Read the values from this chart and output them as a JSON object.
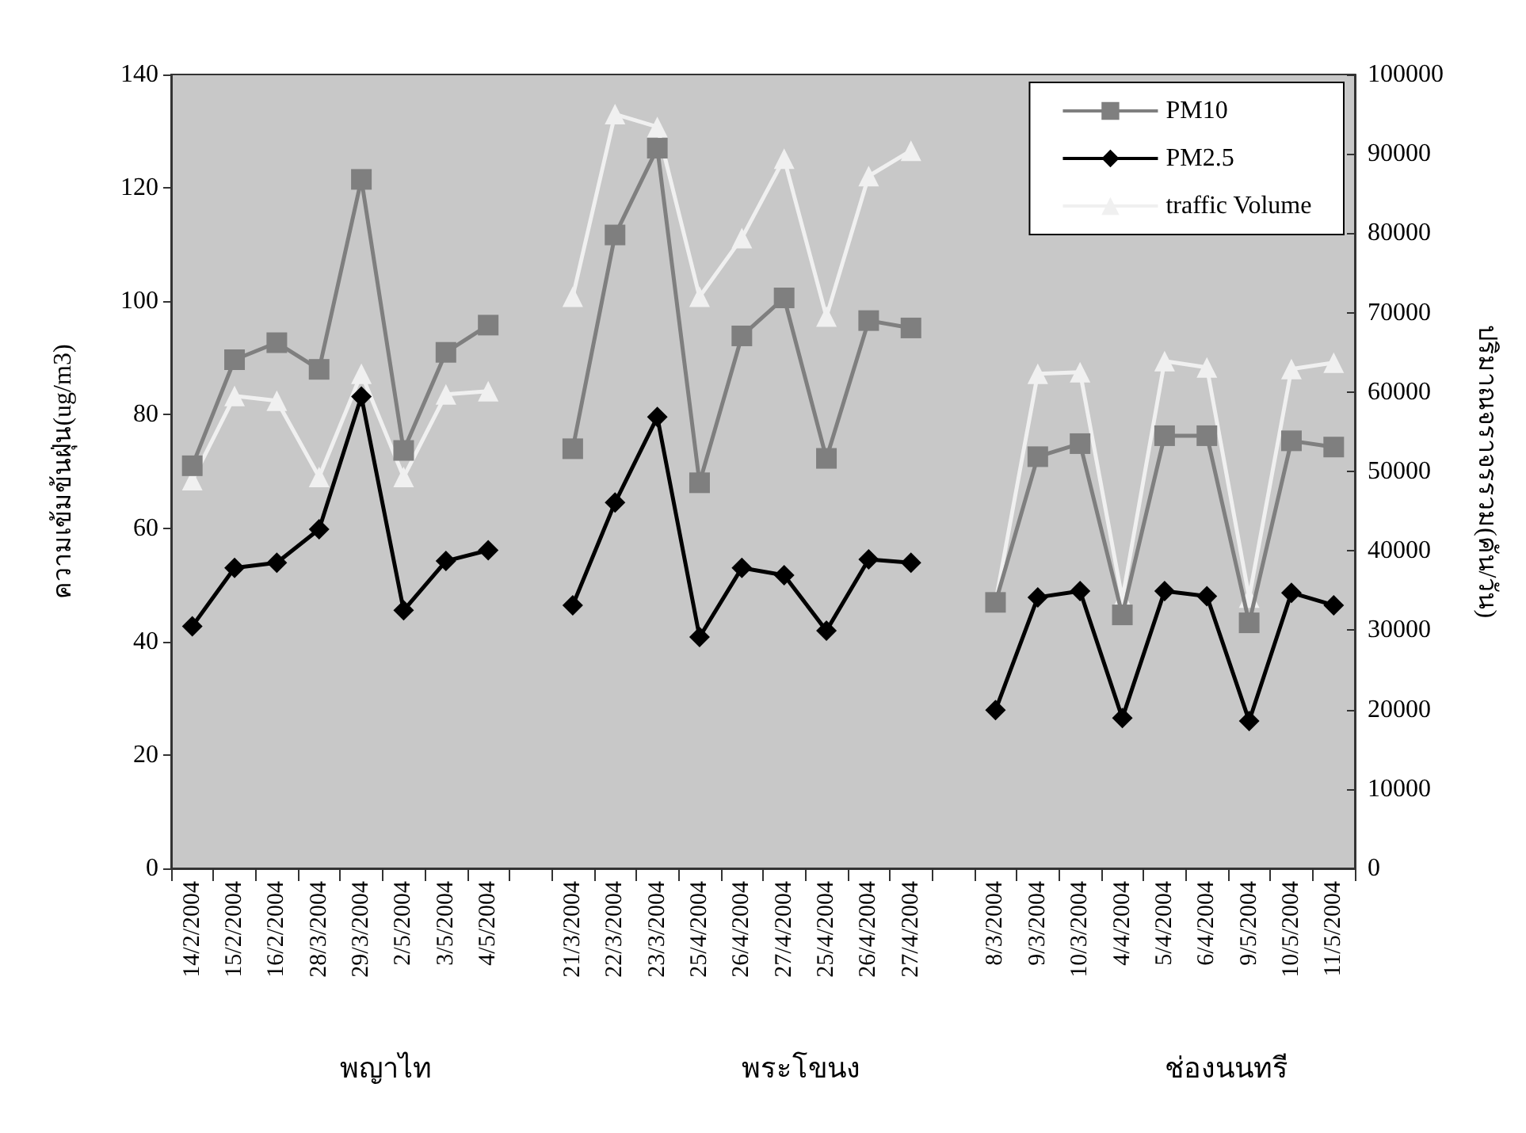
{
  "chart_data": {
    "type": "line",
    "categories": [
      "14/2/2004",
      "15/2/2004",
      "16/2/2004",
      "28/3/2004",
      "29/3/2004",
      "2/5/2004",
      "3/5/2004",
      "4/5/2004",
      null,
      "21/3/2004",
      "22/3/2004",
      "23/3/2004",
      "25/4/2004",
      "26/4/2004",
      "27/4/2004",
      "25/4/2004",
      "26/4/2004",
      "27/4/2004",
      null,
      "8/3/2004",
      "9/3/2004",
      "10/3/2004",
      "4/4/2004",
      "5/4/2004",
      "6/4/2004",
      "9/5/2004",
      "10/5/2004",
      "11/5/2004"
    ],
    "series": [
      {
        "name": "PM10",
        "color": "#7f7f7f",
        "marker": "square",
        "values": [
          71,
          89.7,
          92.7,
          88,
          121.5,
          73.7,
          91,
          95.8,
          null,
          74,
          111.7,
          127,
          68,
          93.9,
          100.6,
          72.3,
          96.6,
          95.3,
          null,
          46.9,
          72.6,
          74.9,
          44.7,
          76.3,
          76.3,
          43.3,
          75.4,
          74.3
        ]
      },
      {
        "name": "PM2.5",
        "color": "#000000",
        "marker": "diamond",
        "values": [
          42.7,
          53,
          53.9,
          59.8,
          83.2,
          45.5,
          54.2,
          56.1,
          null,
          46.4,
          64.5,
          79.6,
          40.8,
          53,
          51.7,
          41.9,
          54.5,
          53.9,
          null,
          27.9,
          47.8,
          48.9,
          26.5,
          48.9,
          48,
          26,
          48.6,
          46.4
        ]
      },
      {
        "name": "traffic Volume",
        "color": "#f0f0f0",
        "marker": "triangle",
        "axis": "y2",
        "values": [
          48900,
          59500,
          58900,
          49300,
          62300,
          49300,
          59700,
          60100,
          null,
          72000,
          95000,
          93400,
          72000,
          79400,
          89400,
          69500,
          87200,
          90400,
          null,
          33500,
          62300,
          62500,
          33900,
          63900,
          63100,
          34100,
          62900,
          63700
        ]
      }
    ],
    "ylabel": "ความเข้มข้นฝุ่น(ug/m3)",
    "y2label": "ปริมาณจราจรรวม(คัน/วัน)",
    "ylim": [
      0,
      140
    ],
    "yticks": [
      0,
      20,
      40,
      60,
      80,
      100,
      120,
      140
    ],
    "y2lim": [
      0,
      100000
    ],
    "y2ticks": [
      0,
      10000,
      20000,
      30000,
      40000,
      50000,
      60000,
      70000,
      80000,
      90000,
      100000
    ],
    "annotations": [
      "พญาไท",
      "พระโขนง",
      "ช่องนนทรี"
    ],
    "legend": "top right",
    "grid": false,
    "line_style": "solid"
  }
}
